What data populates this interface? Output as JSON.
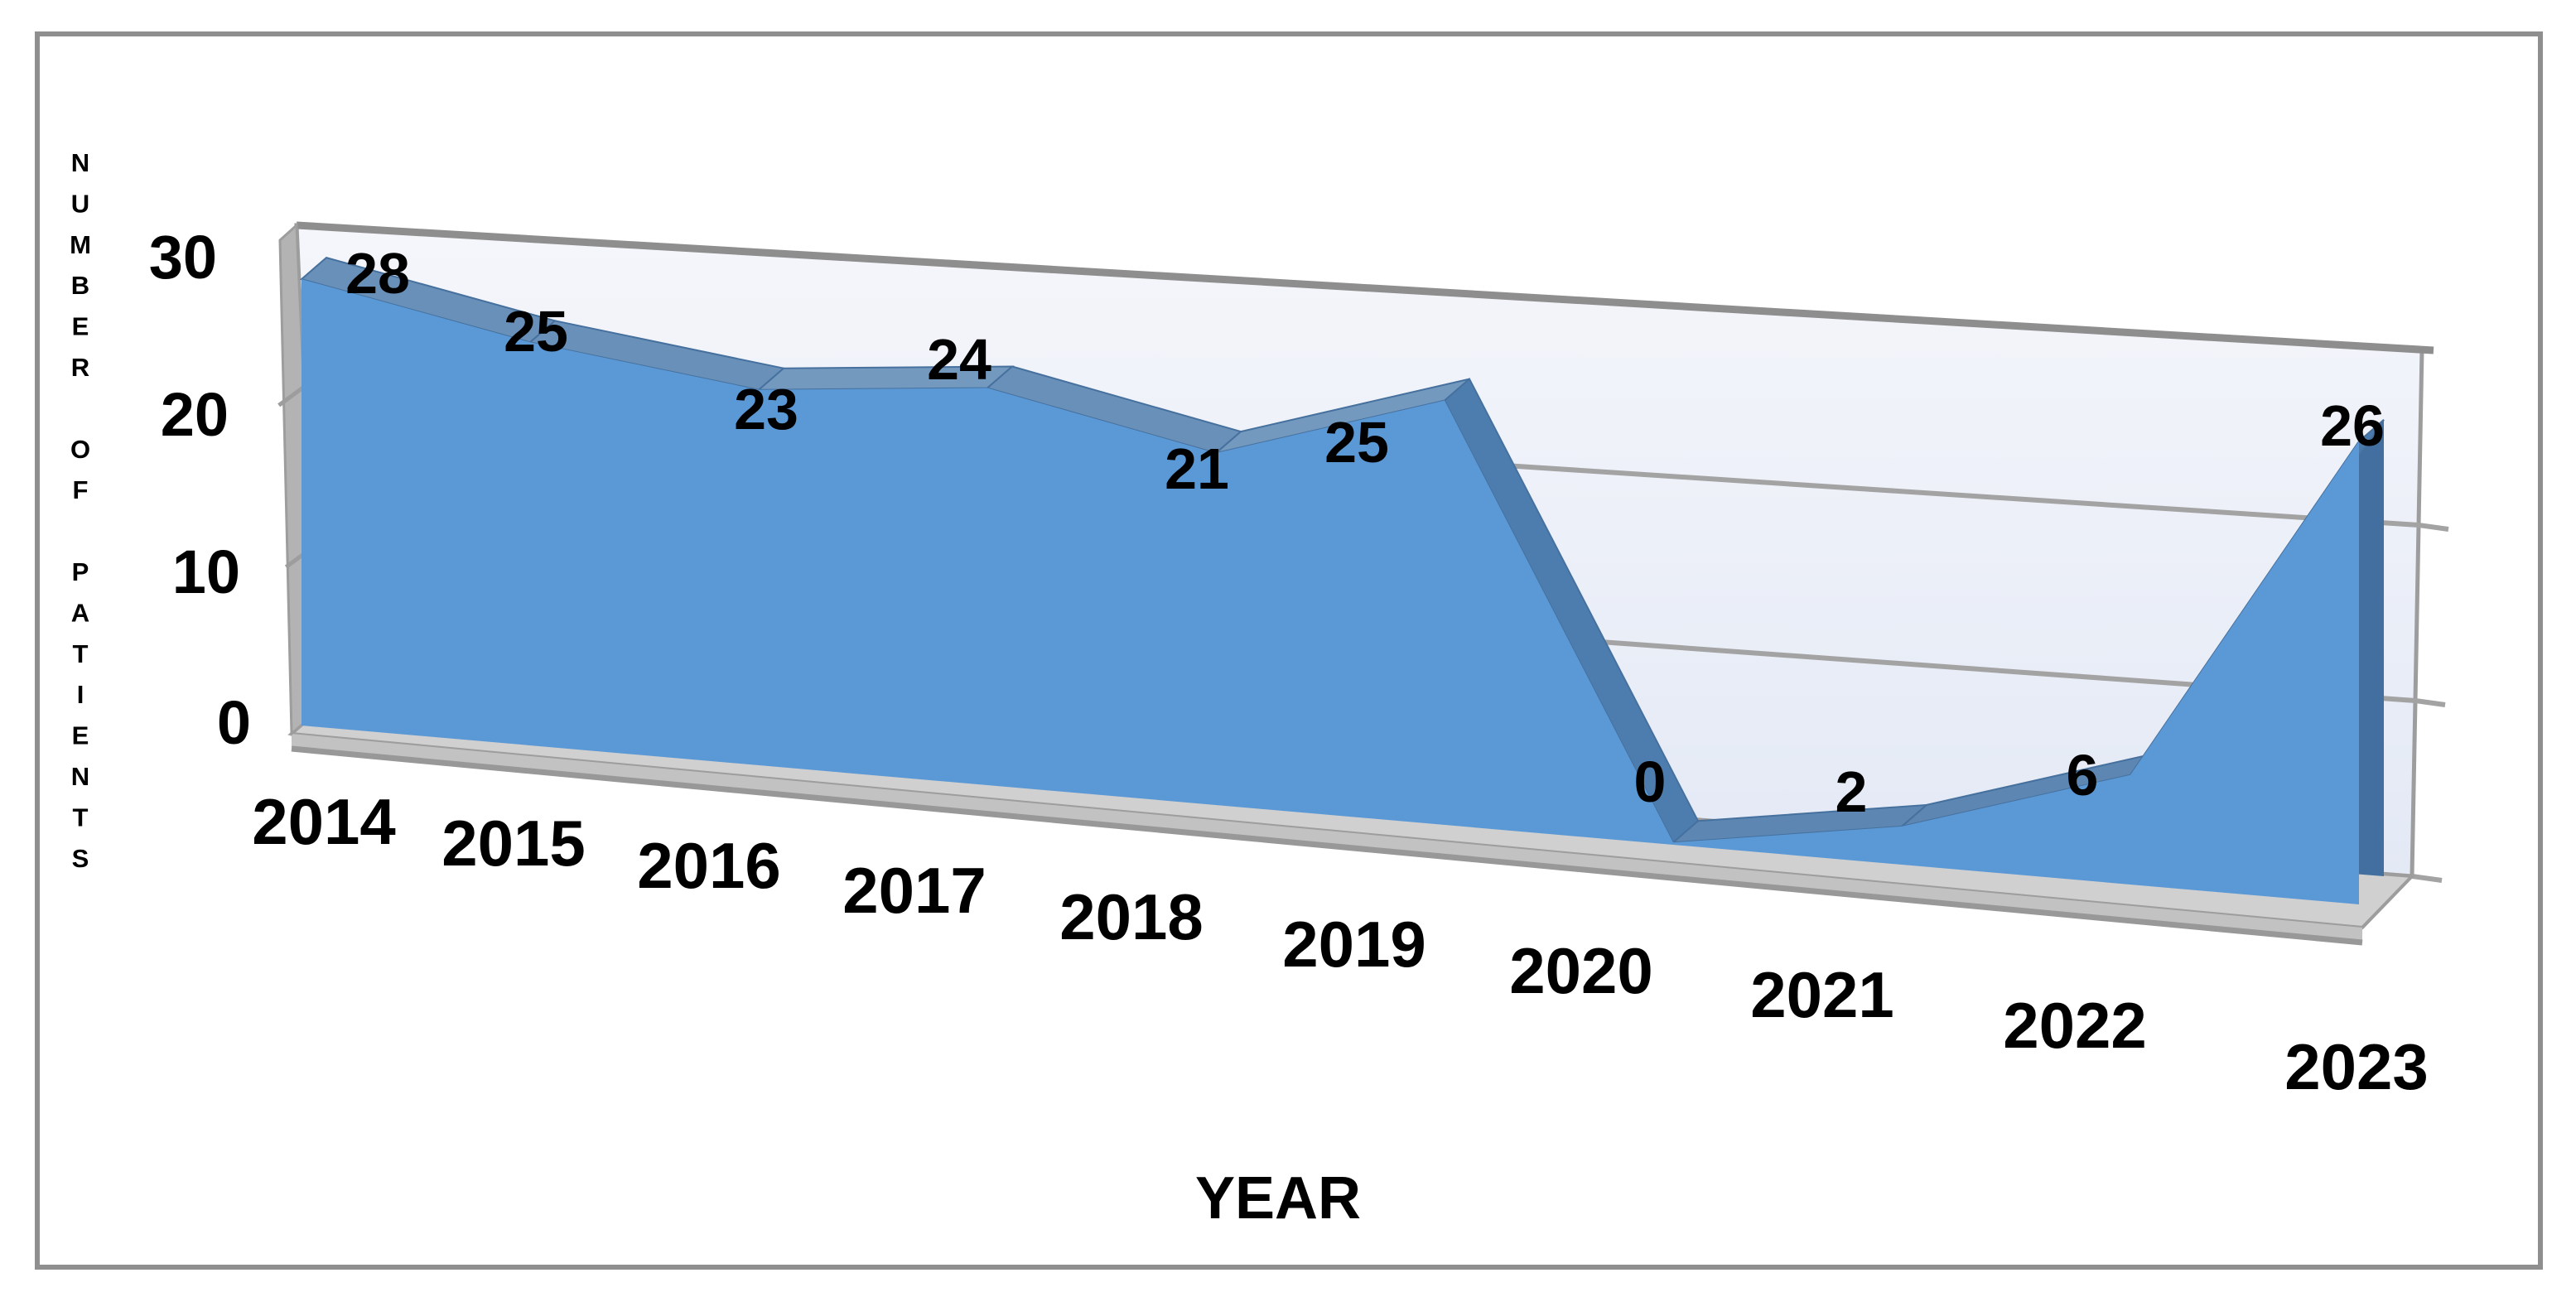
{
  "chart_data": {
    "type": "area",
    "projection": "3d",
    "title": "",
    "xlabel": "YEAR",
    "ylabel": "NUMBER OF PATIENTS",
    "categories": [
      "2014",
      "2015",
      "2016",
      "2017",
      "2018",
      "2019",
      "2020",
      "2021",
      "2022",
      "2023"
    ],
    "values": [
      28,
      25,
      23,
      24,
      21,
      25,
      0,
      2,
      6,
      26
    ],
    "yticks": [
      "30",
      "20",
      "10",
      "0"
    ],
    "ylim": [
      0,
      30
    ],
    "ytick_step": 10,
    "grid": true,
    "legend": false,
    "data_labels_shown": true
  },
  "colors": {
    "area_front": "#5b99d6",
    "area_back_edge": "#426f9f",
    "band_default": "#6990b8",
    "band_up": "#7499bf",
    "band_steep_down": "#4d7dae",
    "band_valley": "#5d86b2",
    "band_steep_up": "#4a79ab",
    "band_stroke": "#46719e",
    "wall_top": "#f5f6fb",
    "wall_bottom": "#e3e9f5",
    "wall_stroke": "#9d9d9d",
    "wall_top_edge": "#8e8e8e",
    "gridline": "#a3a3a3",
    "floor": "#d0d0d0",
    "floor_face": "#c2c2c2",
    "floor_edge": "#989898",
    "side_wall": "#b3b3b3",
    "frame_border": "#8f8f8f",
    "text": "#000000"
  }
}
